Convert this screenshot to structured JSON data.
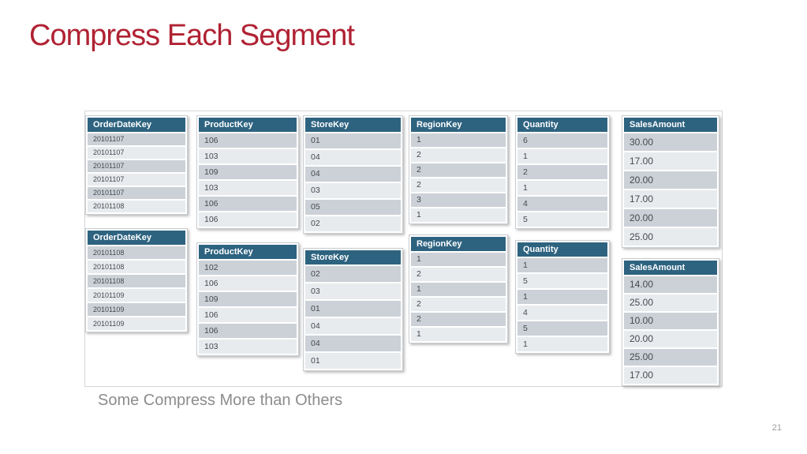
{
  "slide": {
    "title": "Compress Each Segment",
    "subtitle": "Some Compress More than Others",
    "page_number": "21"
  },
  "colors": {
    "title": "#B02233",
    "header_bg": "#2E6380",
    "row_dark": "#CBD1D7",
    "row_light": "#E8EBEE",
    "card_border": "#C9CDD1",
    "container_border": "#D6D6D6",
    "subtitle": "#8C8C8C",
    "pagenum": "#9E9E9E"
  },
  "columns": [
    {
      "header": "OrderDateKey",
      "segments": [
        [
          "20101107",
          "20101107",
          "20101107",
          "20101107",
          "20101107",
          "20101108"
        ],
        [
          "20101108",
          "20101108",
          "20101108",
          "20101109",
          "20101109",
          "20101109"
        ]
      ]
    },
    {
      "header": "ProductKey",
      "segments": [
        [
          "106",
          "103",
          "109",
          "103",
          "106",
          "106"
        ],
        [
          "102",
          "106",
          "109",
          "106",
          "106",
          "103"
        ]
      ]
    },
    {
      "header": "StoreKey",
      "segments": [
        [
          "01",
          "04",
          "04",
          "03",
          "05",
          "02"
        ],
        [
          "02",
          "03",
          "01",
          "04",
          "04",
          "01"
        ]
      ]
    },
    {
      "header": "RegionKey",
      "segments": [
        [
          "1",
          "2",
          "2",
          "2",
          "3",
          "1"
        ],
        [
          "1",
          "2",
          "1",
          "2",
          "2",
          "1"
        ]
      ]
    },
    {
      "header": "Quantity",
      "segments": [
        [
          "6",
          "1",
          "2",
          "1",
          "4",
          "5"
        ],
        [
          "1",
          "5",
          "1",
          "4",
          "5",
          "1"
        ]
      ]
    },
    {
      "header": "SalesAmount",
      "segments": [
        [
          "30.00",
          "17.00",
          "20.00",
          "17.00",
          "20.00",
          "25.00"
        ],
        [
          "14.00",
          "25.00",
          "10.00",
          "20.00",
          "25.00",
          "17.00"
        ]
      ]
    }
  ]
}
